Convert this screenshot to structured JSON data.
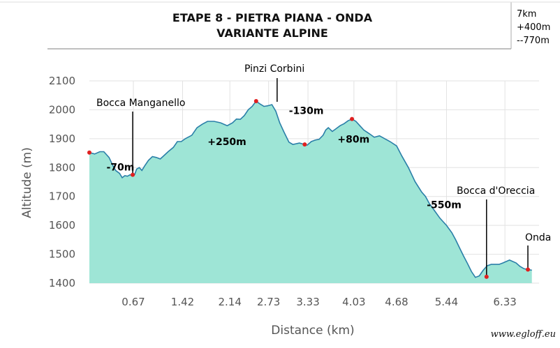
{
  "header": {
    "title_line1": "ETAPE 8 - PIETRA PIANA - ONDA",
    "title_line2": "VARIANTE ALPINE",
    "stat_distance": "7km",
    "stat_gain": "+400m",
    "stat_loss": "--770m"
  },
  "credit": "www.egloff.eu",
  "chart_data": {
    "type": "area",
    "xlabel": "Distance (km)",
    "ylabel": "Altitude (m)",
    "xlim": [
      0,
      6.85
    ],
    "ylim": [
      1400,
      2100
    ],
    "y_ticks": [
      "1400",
      "1500",
      "1600",
      "1700",
      "1800",
      "1900",
      "2000",
      "2100"
    ],
    "x_ticks": [
      {
        "value": 0.67,
        "label": "0.67"
      },
      {
        "value": 1.42,
        "label": "1.42"
      },
      {
        "value": 2.14,
        "label": "2.14"
      },
      {
        "value": 2.73,
        "label": "2.73"
      },
      {
        "value": 3.33,
        "label": "3.33"
      },
      {
        "value": 4.03,
        "label": "4.03"
      },
      {
        "value": 4.68,
        "label": "4.68"
      },
      {
        "value": 5.44,
        "label": "5.44"
      },
      {
        "value": 6.33,
        "label": "6.33"
      }
    ],
    "grid": true,
    "fill_color": "#9ee5d6",
    "line_color": "#2a7fa8",
    "marker_color": "#e02020",
    "profile": {
      "x": [
        0,
        0.08,
        0.16,
        0.22,
        0.3,
        0.36,
        0.4,
        0.46,
        0.5,
        0.54,
        0.58,
        0.62,
        0.66,
        0.69,
        0.72,
        0.76,
        0.8,
        0.84,
        0.9,
        0.96,
        1.02,
        1.08,
        1.12,
        1.2,
        1.28,
        1.34,
        1.4,
        1.46,
        1.56,
        1.64,
        1.72,
        1.8,
        1.9,
        2.0,
        2.1,
        2.18,
        2.24,
        2.3,
        2.36,
        2.42,
        2.48,
        2.54,
        2.6,
        2.66,
        2.72,
        2.78,
        2.84,
        2.9,
        2.96,
        3.04,
        3.1,
        3.2,
        3.28,
        3.32,
        3.38,
        3.44,
        3.5,
        3.56,
        3.6,
        3.64,
        3.7,
        3.76,
        3.82,
        3.88,
        3.94,
        4.0,
        4.06,
        4.12,
        4.18,
        4.26,
        4.34,
        4.42,
        4.5,
        4.58,
        4.68,
        4.76,
        4.86,
        4.96,
        5.06,
        5.12,
        5.18,
        5.26,
        5.34,
        5.44,
        5.52,
        5.58,
        5.64,
        5.7,
        5.76,
        5.82,
        5.88,
        5.94,
        6.0,
        6.06,
        6.12,
        6.18,
        6.24,
        6.3,
        6.4,
        6.5,
        6.56,
        6.62,
        6.68,
        6.74
      ],
      "y": [
        1852,
        1847,
        1855,
        1855,
        1835,
        1806,
        1790,
        1780,
        1765,
        1772,
        1770,
        1775,
        1770,
        1776,
        1795,
        1800,
        1790,
        1805,
        1825,
        1838,
        1835,
        1830,
        1838,
        1855,
        1870,
        1890,
        1890,
        1900,
        1912,
        1938,
        1950,
        1960,
        1960,
        1955,
        1945,
        1955,
        1968,
        1967,
        1980,
        2000,
        2012,
        2030,
        2020,
        2012,
        2014,
        2018,
        1995,
        1955,
        1925,
        1888,
        1880,
        1885,
        1880,
        1878,
        1890,
        1895,
        1898,
        1912,
        1930,
        1938,
        1925,
        1935,
        1945,
        1952,
        1962,
        1968,
        1960,
        1945,
        1930,
        1918,
        1905,
        1910,
        1900,
        1890,
        1875,
        1840,
        1800,
        1752,
        1716,
        1700,
        1675,
        1650,
        1625,
        1600,
        1575,
        1550,
        1522,
        1494,
        1468,
        1440,
        1420,
        1425,
        1445,
        1460,
        1465,
        1465,
        1465,
        1470,
        1480,
        1470,
        1458,
        1450,
        1447,
        1445
      ]
    },
    "points": [
      {
        "x": 0.0,
        "y": 1852
      },
      {
        "x": 0.66,
        "y": 1775
      },
      {
        "x": 2.54,
        "y": 2030
      },
      {
        "x": 3.28,
        "y": 1880
      },
      {
        "x": 4.0,
        "y": 1968
      },
      {
        "x": 6.05,
        "y": 1422
      },
      {
        "x": 6.68,
        "y": 1447
      }
    ],
    "annotations": [
      {
        "text": "Bocca Manganello",
        "x": 0.66,
        "y": 1775
      },
      {
        "text": "Pinzi Corbini",
        "x": 2.86,
        "y": 2018
      },
      {
        "text": "Bocca d'Oreccia",
        "x": 6.05,
        "y": 1422
      },
      {
        "text": "Onda",
        "x": 6.68,
        "y": 1447
      }
    ],
    "segment_labels": [
      {
        "text": "-70m",
        "x": 0.26,
        "y": 1790
      },
      {
        "text": "+250m",
        "x": 1.8,
        "y": 1878
      },
      {
        "text": "-130m",
        "x": 3.04,
        "y": 1985
      },
      {
        "text": "+80m",
        "x": 3.78,
        "y": 1886
      },
      {
        "text": "-550m",
        "x": 5.14,
        "y": 1660
      }
    ]
  }
}
